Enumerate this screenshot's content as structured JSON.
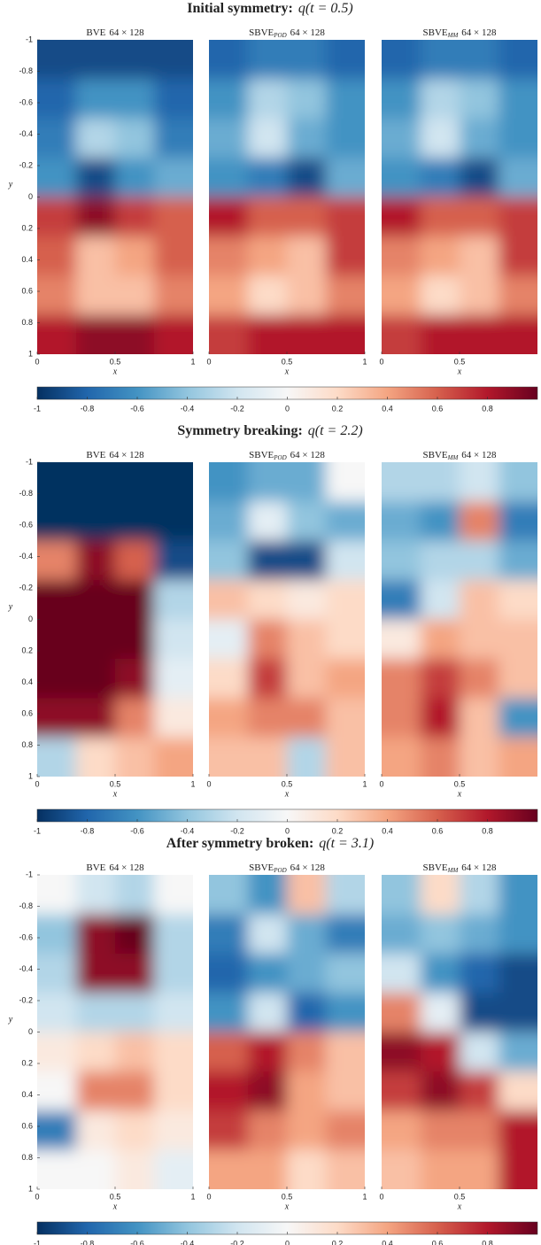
{
  "chart_data": [
    {
      "type": "heatmap",
      "title": "Initial symmetry:",
      "title_math": "q(t = 0.5)",
      "xlabel": "x",
      "ylabel": "y",
      "xlim": [
        0,
        1
      ],
      "ylim": [
        -1,
        1
      ],
      "y_reversed": true,
      "yticks": [
        -1,
        -0.8,
        -0.6,
        -0.4,
        -0.2,
        0,
        0.2,
        0.4,
        0.6,
        0.8,
        1
      ],
      "colorbar": {
        "clim": [
          -1,
          1
        ],
        "ticks": [
          -1,
          -0.8,
          -0.6,
          -0.4,
          -0.2,
          0,
          0.2,
          0.4,
          0.6,
          0.8
        ]
      },
      "colormap": [
        "#053061",
        "#2166ac",
        "#4393c3",
        "#92c5de",
        "#d1e5f0",
        "#f7f7f7",
        "#fddbc7",
        "#f4a582",
        "#d6604d",
        "#b2182b",
        "#67001f"
      ],
      "panels": [
        {
          "model": "BVE",
          "grid": "64 × 128",
          "xticks": [
            0,
            0.5,
            1
          ],
          "z": [
            [
              -0.9,
              -0.9,
              -0.9,
              -0.9
            ],
            [
              -0.8,
              -0.6,
              -0.6,
              -0.8
            ],
            [
              -0.7,
              -0.3,
              -0.4,
              -0.7
            ],
            [
              -0.6,
              -0.9,
              -0.6,
              -0.5
            ],
            [
              0.7,
              0.9,
              0.7,
              0.6
            ],
            [
              0.6,
              0.3,
              0.4,
              0.6
            ],
            [
              0.5,
              0.3,
              0.3,
              0.5
            ],
            [
              0.8,
              0.9,
              0.9,
              0.8
            ]
          ]
        },
        {
          "model": "SBVE",
          "sub": "POD",
          "grid": "64 × 128",
          "xticks": [
            0,
            0.5,
            1
          ],
          "z": [
            [
              -0.8,
              -0.7,
              -0.7,
              -0.8
            ],
            [
              -0.6,
              -0.3,
              -0.4,
              -0.6
            ],
            [
              -0.5,
              -0.2,
              -0.5,
              -0.6
            ],
            [
              -0.6,
              -0.7,
              -0.9,
              -0.5
            ],
            [
              0.8,
              0.6,
              0.6,
              0.7
            ],
            [
              0.5,
              0.4,
              0.3,
              0.7
            ],
            [
              0.4,
              0.2,
              0.3,
              0.5
            ],
            [
              0.7,
              0.8,
              0.8,
              0.8
            ]
          ]
        },
        {
          "model": "SBVE",
          "sub": "MM",
          "grid": "64 × 128",
          "xticks": [
            0,
            0.5
          ],
          "z": [
            [
              -0.8,
              -0.7,
              -0.7,
              -0.8
            ],
            [
              -0.6,
              -0.3,
              -0.4,
              -0.6
            ],
            [
              -0.5,
              -0.2,
              -0.5,
              -0.6
            ],
            [
              -0.6,
              -0.7,
              -0.9,
              -0.5
            ],
            [
              0.8,
              0.6,
              0.6,
              0.7
            ],
            [
              0.5,
              0.4,
              0.3,
              0.7
            ],
            [
              0.4,
              0.2,
              0.3,
              0.5
            ],
            [
              0.7,
              0.8,
              0.8,
              0.8
            ]
          ]
        }
      ]
    },
    {
      "type": "heatmap",
      "title": "Symmetry breaking:",
      "title_math": "q(t = 2.2)",
      "xlabel": "x",
      "ylabel": "y",
      "xlim": [
        0,
        1
      ],
      "ylim": [
        -1,
        1
      ],
      "y_reversed": true,
      "yticks": [
        -1,
        -0.8,
        -0.6,
        -0.4,
        -0.2,
        0,
        0.2,
        0.4,
        0.6,
        0.8,
        1
      ],
      "colorbar": {
        "clim": [
          -1,
          1
        ],
        "ticks": [
          -1,
          -0.8,
          -0.6,
          -0.4,
          -0.2,
          0,
          0.2,
          0.4,
          0.6,
          0.8
        ]
      },
      "colormap": [
        "#053061",
        "#2166ac",
        "#4393c3",
        "#92c5de",
        "#d1e5f0",
        "#f7f7f7",
        "#fddbc7",
        "#f4a582",
        "#d6604d",
        "#b2182b",
        "#67001f"
      ],
      "panels": [
        {
          "model": "BVE",
          "grid": "64 × 128",
          "xticks": [
            0,
            0.5,
            1
          ],
          "z": [
            [
              -1,
              -1,
              -1,
              -1
            ],
            [
              -1,
              -1,
              -1,
              -1
            ],
            [
              0.5,
              0.9,
              0.6,
              -0.9
            ],
            [
              1,
              1,
              1,
              -0.3
            ],
            [
              1,
              1,
              1,
              -0.2
            ],
            [
              1,
              1,
              0.9,
              -0.1
            ],
            [
              0.9,
              0.9,
              0.5,
              0.1
            ],
            [
              -0.3,
              0.2,
              0.3,
              0.4
            ]
          ]
        },
        {
          "model": "SBVE",
          "sub": "POD",
          "grid": "64 × 128",
          "xticks": [
            0,
            0.5,
            1
          ],
          "z": [
            [
              -0.6,
              -0.5,
              -0.5,
              0
            ],
            [
              -0.5,
              -0.1,
              -0.4,
              -0.5
            ],
            [
              -0.4,
              -0.9,
              -0.9,
              -0.2
            ],
            [
              0.3,
              0.2,
              0.1,
              0.2
            ],
            [
              -0.1,
              0.5,
              0.3,
              0.2
            ],
            [
              0.2,
              0.7,
              0.3,
              0.4
            ],
            [
              0.4,
              0.5,
              0.5,
              0.3
            ],
            [
              0.3,
              0.3,
              -0.3,
              0.3
            ]
          ]
        },
        {
          "model": "SBVE",
          "sub": "MM",
          "grid": "64 × 128",
          "xticks": [
            0,
            0.5
          ],
          "z": [
            [
              -0.3,
              -0.3,
              -0.2,
              -0.4
            ],
            [
              -0.5,
              -0.6,
              0.5,
              -0.7
            ],
            [
              -0.4,
              -0.3,
              -0.3,
              -0.5
            ],
            [
              -0.7,
              -0.2,
              0.3,
              0.2
            ],
            [
              0.1,
              0.4,
              0.3,
              0.3
            ],
            [
              0.5,
              0.7,
              0.5,
              0.3
            ],
            [
              0.5,
              0.8,
              0.3,
              -0.6
            ],
            [
              0.4,
              0.5,
              0.3,
              0.4
            ]
          ]
        }
      ]
    },
    {
      "type": "heatmap",
      "title": "After symmetry broken:",
      "title_math": "q(t = 3.1)",
      "xlabel": "x",
      "ylabel": "y",
      "xlim": [
        0,
        1
      ],
      "ylim": [
        -1,
        1
      ],
      "y_reversed": true,
      "yticks": [
        -1,
        -0.8,
        -0.6,
        -0.4,
        -0.2,
        0,
        0.2,
        0.4,
        0.6,
        0.8,
        1
      ],
      "colorbar": {
        "clim": [
          -1,
          1
        ],
        "ticks": [
          -1,
          -0.8,
          -0.6,
          -0.4,
          -0.2,
          0,
          0.2,
          0.4,
          0.6,
          0.8
        ]
      },
      "colormap": [
        "#053061",
        "#2166ac",
        "#4393c3",
        "#92c5de",
        "#d1e5f0",
        "#f7f7f7",
        "#fddbc7",
        "#f4a582",
        "#d6604d",
        "#b2182b",
        "#67001f"
      ],
      "panels": [
        {
          "model": "BVE",
          "grid": "64 × 128",
          "xticks": [
            0,
            0.5,
            1
          ],
          "z": [
            [
              0,
              -0.2,
              -0.3,
              0
            ],
            [
              -0.4,
              0.9,
              1,
              -0.3
            ],
            [
              -0.3,
              0.9,
              0.9,
              -0.3
            ],
            [
              -0.2,
              -0.3,
              -0.3,
              -0.2
            ],
            [
              0.1,
              0.2,
              0.3,
              0.2
            ],
            [
              0,
              0.5,
              0.5,
              0.2
            ],
            [
              -0.7,
              0.1,
              0.2,
              0.1
            ],
            [
              0,
              0,
              0.1,
              -0.1
            ]
          ]
        },
        {
          "model": "SBVE",
          "sub": "POD",
          "grid": "64 × 128",
          "xticks": [
            0,
            0.5,
            1
          ],
          "z": [
            [
              -0.4,
              -0.6,
              0.3,
              -0.3
            ],
            [
              -0.7,
              -0.2,
              -0.5,
              -0.7
            ],
            [
              -0.8,
              -0.6,
              -0.5,
              -0.4
            ],
            [
              -0.6,
              -0.2,
              -0.8,
              -0.6
            ],
            [
              0.6,
              0.8,
              0.5,
              0.3
            ],
            [
              0.8,
              0.9,
              0.4,
              0.3
            ],
            [
              0.7,
              0.5,
              0.4,
              0.5
            ],
            [
              0.4,
              0.4,
              0.2,
              0.3
            ]
          ]
        },
        {
          "model": "SBVE",
          "sub": "MM",
          "grid": "64 × 128",
          "xticks": [
            0,
            0.5
          ],
          "z": [
            [
              -0.4,
              0.2,
              -0.3,
              -0.6
            ],
            [
              -0.5,
              -0.4,
              -0.5,
              -0.6
            ],
            [
              -0.2,
              -0.6,
              -0.8,
              -0.9
            ],
            [
              0.5,
              -0.1,
              -0.9,
              -0.9
            ],
            [
              0.9,
              0.8,
              -0.2,
              -0.5
            ],
            [
              0.7,
              0.9,
              0.7,
              0.2
            ],
            [
              0.4,
              0.5,
              0.5,
              0.8
            ],
            [
              0.3,
              0.4,
              0.4,
              0.8
            ]
          ]
        }
      ]
    }
  ]
}
